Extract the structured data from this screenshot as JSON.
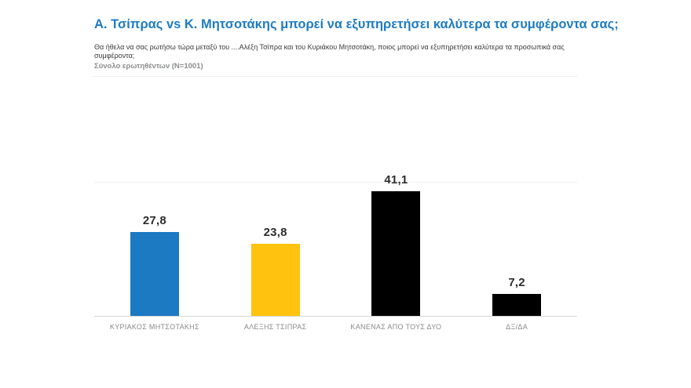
{
  "header": {
    "title": "Α. Τσίπρας vs Κ. Μητσοτάκης μπορεί να εξυπηρετήσει καλύτερα τα συμφέροντα σας;",
    "question": "Θα ήθελα να σας ρωτήσω τώρα μεταξύ του ....Αλέξη Τσίπρα και του Κυριάκου Μητσοτάκη, ποιος μπορεί να εξυπηρετήσει καλύτερα τα προσωπικά σας συμφέροντα;",
    "sample": "Σύνολο ερωτηθέντων (Ν=1001)"
  },
  "chart_data": {
    "type": "bar",
    "title": "Α. Τσίπρας vs Κ. Μητσοτάκης μπορεί να εξυπηρετήσει καλύτερα τα συμφέροντα σας;",
    "categories": [
      "ΚΥΡΙΑΚΟΣ ΜΗΤΣΟΤΑΚΗΣ",
      "ΑΛΕΞΗΣ ΤΣΙΠΡΑΣ",
      "ΚΑΝΕΝΑΣ ΑΠΟ ΤΟΥΣ ΔΥΟ",
      "ΔΞ/ΔΑ"
    ],
    "values": [
      27.8,
      23.8,
      41.1,
      7.2
    ],
    "value_labels": [
      "27,8",
      "23,8",
      "41,1",
      "7,2"
    ],
    "colors": [
      "#1b7ac2",
      "#ffc20e",
      "#000000",
      "#000000"
    ],
    "xlabel": "",
    "ylabel": "",
    "ylim": [
      0,
      44
    ],
    "grid": "off",
    "legend": "none"
  },
  "colors": {
    "title": "#1f7cc2",
    "bar_blue": "#1b7ac2",
    "bar_yellow": "#ffc20e",
    "bar_black": "#000000",
    "category_label": "#87898c",
    "value_label": "#2d2d2d",
    "axis_line": "#d7d7d7"
  }
}
